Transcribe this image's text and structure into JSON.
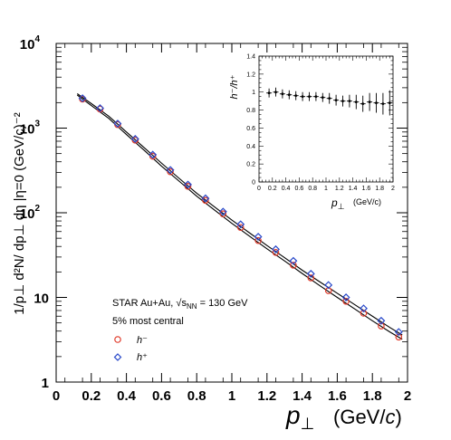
{
  "chart_data": [
    {
      "type": "scatter",
      "xlabel_var": "p",
      "xlabel_sub": "⊥",
      "xlabel_unit": "(GeV/",
      "xlabel_unit_c": "c",
      "xlabel_unit_end": ")",
      "ylabel": "1/p⊥ d²N/ dp⊥ dη |η=0 (GeV/c)⁻²",
      "x_scale": "linear",
      "y_scale": "log",
      "xlim": [
        0,
        2
      ],
      "ylim": [
        1,
        10000
      ],
      "x_ticks": [
        "0",
        "0.2",
        "0.4",
        "0.6",
        "0.8",
        "1",
        "1.2",
        "1.4",
        "1.6",
        "1.8",
        "2"
      ],
      "y_ticks": [
        {
          "base": "1",
          "exp": ""
        },
        {
          "base": "10",
          "exp": ""
        },
        {
          "base": "10",
          "exp": "2"
        },
        {
          "base": "10",
          "exp": "3"
        },
        {
          "base": "10",
          "exp": "4"
        }
      ],
      "legend": {
        "placement": "bottom-left",
        "line1_prefix": "STAR Au+Au, ",
        "line1_sqrt": "√s",
        "line1_sub": "NN",
        "line1_suffix": " = 130 GeV",
        "line2": "5% most central"
      },
      "series": [
        {
          "name": "h⁻",
          "marker": "circle",
          "color": "#e03a2a",
          "x": [
            0.15,
            0.25,
            0.35,
            0.45,
            0.55,
            0.65,
            0.75,
            0.85,
            0.95,
            1.05,
            1.15,
            1.25,
            1.35,
            1.45,
            1.55,
            1.65,
            1.75,
            1.85,
            1.95
          ],
          "y": [
            2200,
            1680,
            1100,
            720,
            465,
            305,
            205,
            140,
            97,
            67,
            47,
            34,
            24,
            17,
            12,
            9.0,
            6.5,
            4.6,
            3.4
          ]
        },
        {
          "name": "h⁺",
          "marker": "diamond",
          "color": "#2747c9",
          "x": [
            0.15,
            0.25,
            0.35,
            0.45,
            0.55,
            0.65,
            0.75,
            0.85,
            0.95,
            1.05,
            1.15,
            1.25,
            1.35,
            1.45,
            1.55,
            1.65,
            1.75,
            1.85,
            1.95
          ],
          "y": [
            2250,
            1720,
            1130,
            745,
            485,
            320,
            215,
            148,
            103,
            73,
            52,
            37,
            27,
            19,
            14,
            10,
            7.4,
            5.3,
            3.9
          ]
        },
        {
          "name": "",
          "marker": "line",
          "color": "#000000",
          "x": [
            0.12,
            0.2,
            0.3,
            0.4,
            0.5,
            0.6,
            0.7,
            0.8,
            0.9,
            1.0,
            1.1,
            1.2,
            1.3,
            1.4,
            1.5,
            1.6,
            1.7,
            1.8,
            1.9,
            1.97
          ],
          "y": [
            2550,
            1950,
            1380,
            900,
            590,
            385,
            255,
            170,
            118,
            82,
            58,
            41,
            29.5,
            21,
            15.3,
            11.2,
            8.2,
            6.0,
            4.4,
            3.6
          ]
        },
        {
          "name": "",
          "marker": "line",
          "color": "#000000",
          "x": [
            0.12,
            0.2,
            0.3,
            0.4,
            0.5,
            0.6,
            0.7,
            0.8,
            0.9,
            1.0,
            1.1,
            1.2,
            1.3,
            1.4,
            1.5,
            1.6,
            1.7,
            1.8,
            1.9,
            1.97
          ],
          "y": [
            2450,
            1850,
            1300,
            840,
            550,
            355,
            236,
            157,
            108,
            75,
            53,
            37.5,
            27,
            19.2,
            13.8,
            10,
            7.3,
            5.3,
            3.9,
            3.2
          ]
        }
      ]
    },
    {
      "type": "scatter",
      "xlabel_var": "p",
      "xlabel_sub": "⊥",
      "xlabel_unit": "(GeV/c)",
      "ylabel": "h⁻/h⁺",
      "xlim": [
        0,
        2
      ],
      "ylim": [
        0,
        1.4
      ],
      "x_ticks": [
        "0",
        "0.2",
        "0.4",
        "0.6",
        "0.8",
        "1",
        "1.2",
        "1.4",
        "1.6",
        "1.8",
        "2"
      ],
      "y_ticks": [
        "0",
        "0.2",
        "0.4",
        "0.6",
        "0.8",
        "1",
        "1.2",
        "1.4"
      ],
      "series": [
        {
          "name": "",
          "marker": "point",
          "color": "#000000",
          "x": [
            0.15,
            0.25,
            0.35,
            0.45,
            0.55,
            0.65,
            0.75,
            0.85,
            0.95,
            1.05,
            1.15,
            1.25,
            1.35,
            1.45,
            1.55,
            1.65,
            1.75,
            1.85,
            1.95
          ],
          "y": [
            0.99,
            1.0,
            0.98,
            0.97,
            0.96,
            0.95,
            0.95,
            0.95,
            0.94,
            0.93,
            0.91,
            0.9,
            0.9,
            0.89,
            0.87,
            0.89,
            0.88,
            0.87,
            0.88
          ],
          "yerr": [
            0.05,
            0.05,
            0.05,
            0.05,
            0.05,
            0.05,
            0.05,
            0.05,
            0.05,
            0.06,
            0.06,
            0.06,
            0.07,
            0.08,
            0.09,
            0.1,
            0.11,
            0.12,
            0.14
          ]
        }
      ]
    }
  ]
}
